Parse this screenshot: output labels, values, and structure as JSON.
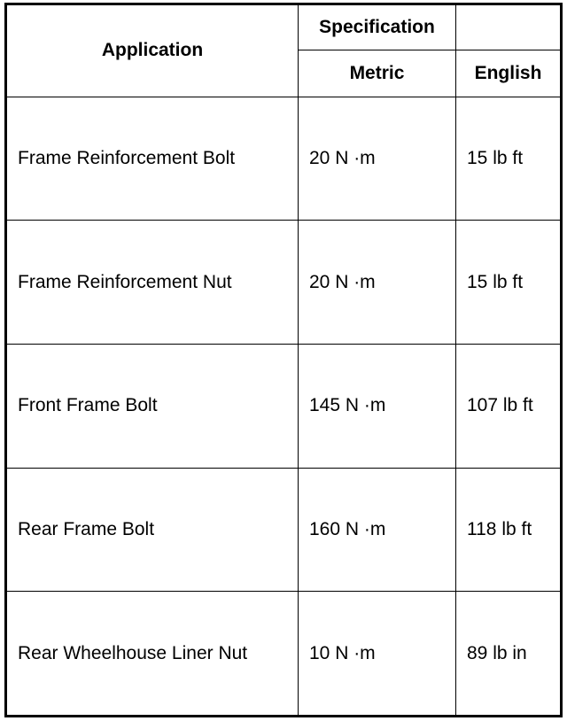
{
  "header": {
    "application": "Application",
    "specification": "Specification",
    "metric": "Metric",
    "english": "English"
  },
  "rows": [
    {
      "application": "Frame Reinforcement Bolt",
      "metric": "20 N ·m",
      "english": "15 lb ft"
    },
    {
      "application": "Frame Reinforcement Nut",
      "metric": "20 N ·m",
      "english": "15 lb ft"
    },
    {
      "application": "Front Frame Bolt",
      "metric": "145 N ·m",
      "english": "107 lb ft"
    },
    {
      "application": "Rear Frame Bolt",
      "metric": "160 N ·m",
      "english": "118 lb ft"
    },
    {
      "application": "Rear Wheelhouse Liner Nut",
      "metric": "10 N ·m",
      "english": "89 lb in"
    }
  ]
}
